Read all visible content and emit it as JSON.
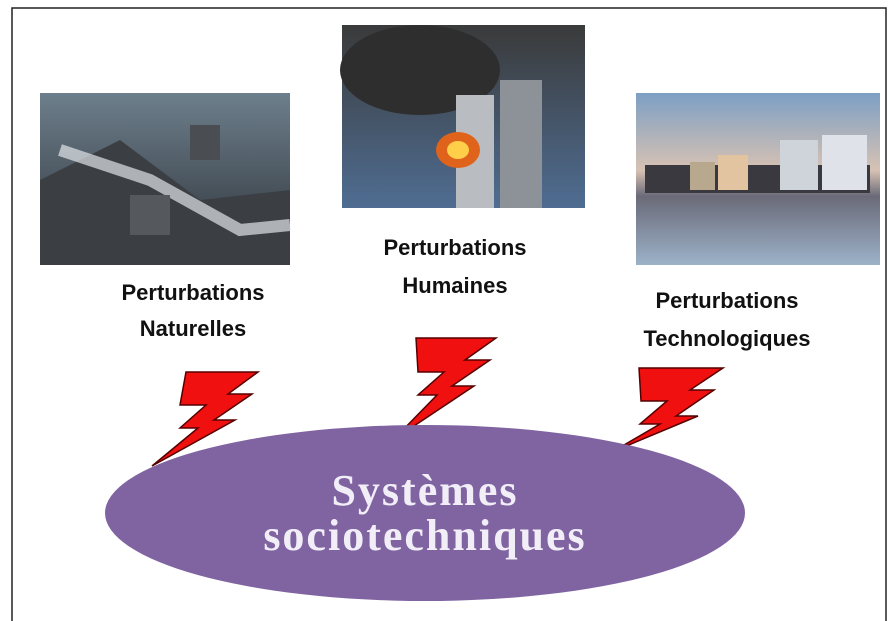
{
  "nodes": [
    {
      "label_lines": [
        "Perturbations",
        "Naturelles"
      ]
    },
    {
      "label_lines": [
        "Perturbations",
        "Humaines"
      ]
    },
    {
      "label_lines": [
        "Perturbations",
        "Technologiques"
      ]
    }
  ],
  "center": {
    "label_lines": [
      "Systèmes",
      "sociotechniques"
    ]
  }
}
